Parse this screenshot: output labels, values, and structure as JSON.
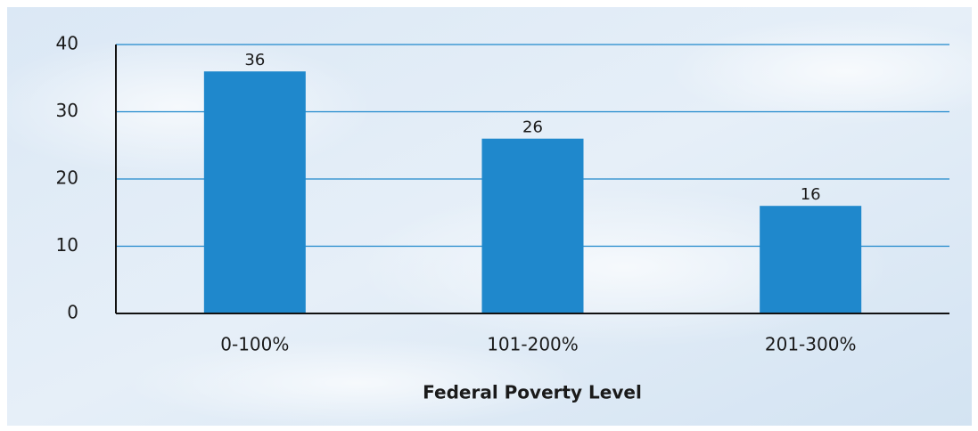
{
  "chart_data": {
    "type": "bar",
    "categories": [
      "0-100%",
      "101-200%",
      "201-300%"
    ],
    "values": [
      36,
      26,
      16
    ],
    "color": "#1f88cc",
    "xlabel": "Federal Poverty Level",
    "ylim": [
      0,
      40
    ],
    "yticks": [
      0,
      10,
      20,
      30,
      40
    ],
    "grid": true,
    "grid_color": "#1f88cc"
  }
}
